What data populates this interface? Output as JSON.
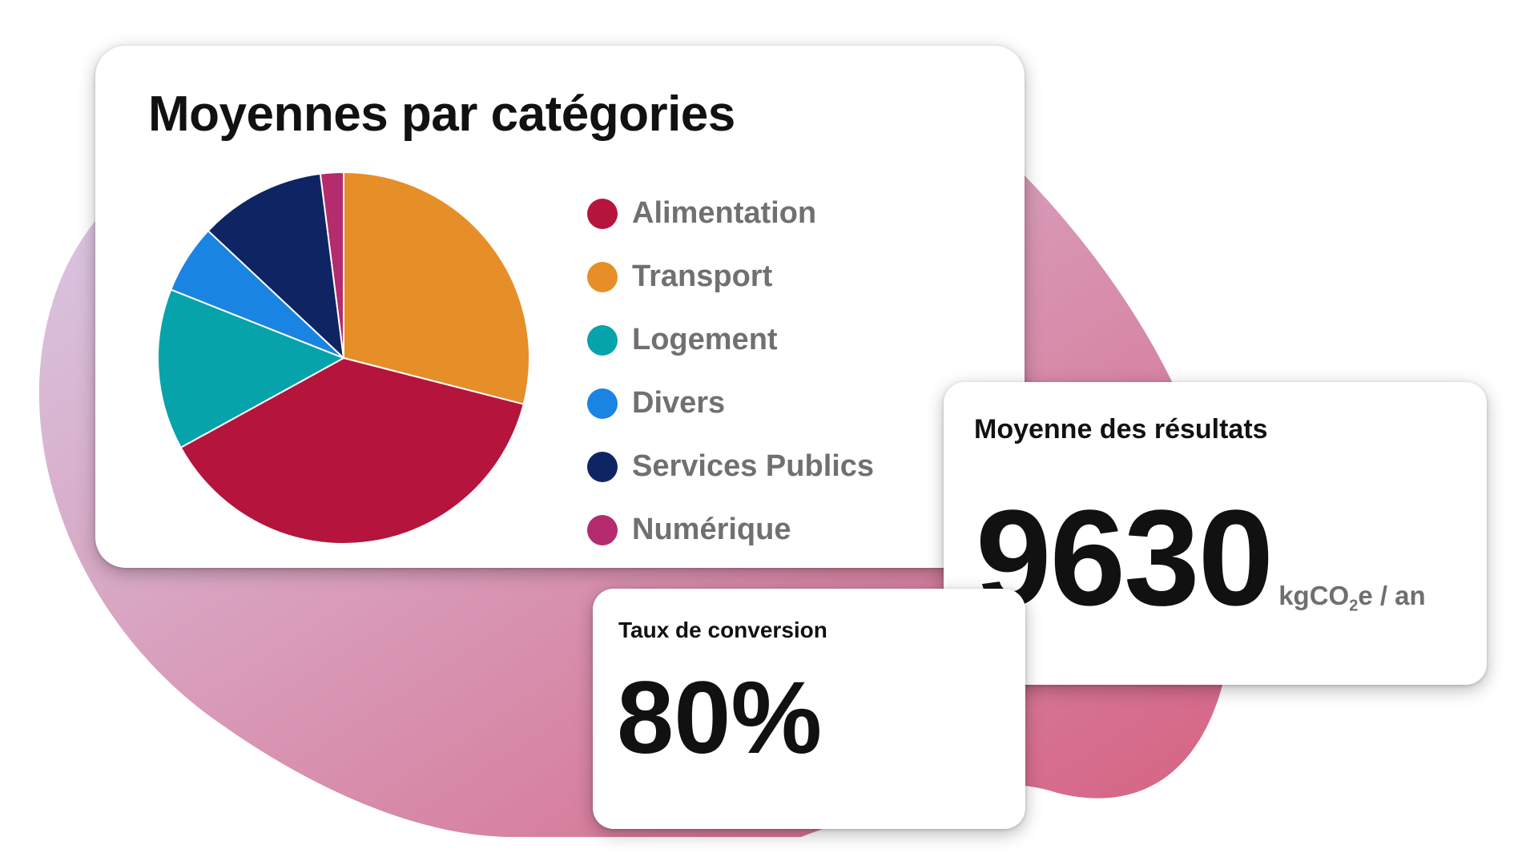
{
  "colors": {
    "blob_start": "#d9d1ec",
    "blob_end": "#d66080",
    "card_bg": "#ffffff",
    "text": "#111111",
    "legend_text": "#707070"
  },
  "pie_card": {
    "title": "Moyennes par catégories"
  },
  "chart_data": {
    "type": "pie",
    "title": "Moyennes par catégories",
    "categories": [
      "Transport",
      "Alimentation",
      "Logement",
      "Divers",
      "Services Publics",
      "Numérique"
    ],
    "values": [
      29,
      38,
      14,
      6,
      11,
      2
    ],
    "colors": [
      "#e68e28",
      "#b5143d",
      "#06a3aa",
      "#1984e2",
      "#0f2563",
      "#b42c6d"
    ],
    "start_angle_deg": 0,
    "legend_position": "right",
    "legend": [
      {
        "label": "Alimentation",
        "color": "#b5143d"
      },
      {
        "label": "Transport",
        "color": "#e68e28"
      },
      {
        "label": "Logement",
        "color": "#06a3aa"
      },
      {
        "label": "Divers",
        "color": "#1984e2"
      },
      {
        "label": "Services Publics",
        "color": "#0f2563"
      },
      {
        "label": "Numérique",
        "color": "#b42c6d"
      }
    ]
  },
  "average_card": {
    "title": "Moyenne des résultats",
    "value": "9630",
    "unit_prefix": "kgCO",
    "unit_subscript": "2",
    "unit_suffix": "e / an"
  },
  "conversion_card": {
    "title": "Taux de conversion",
    "value": "80%"
  }
}
